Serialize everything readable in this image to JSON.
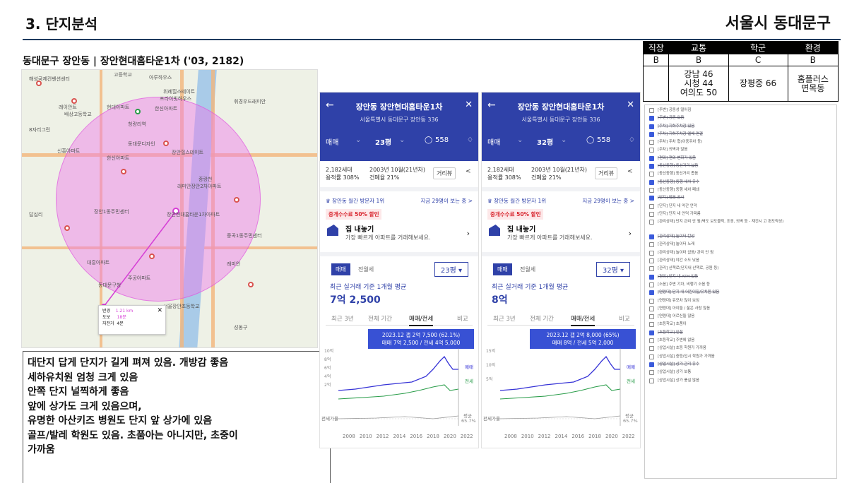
{
  "header": {
    "section_title": "3. 단지분석",
    "region": "서울시 동대문구"
  },
  "subtitle": "동대문구 장안동 | 장안현대홈타운1차 ('03, 2182)",
  "map": {
    "labels": [
      "해성국제컨벤션센터",
      "고등학교",
      "아루하우스",
      "위례힐스테이트",
      "프라이빗하우스",
      "레이안트",
      "배상고등학교",
      "현대아파트",
      "한신아파트",
      "휘경우드래미안",
      "청량리역",
      "8자리그린",
      "신흥아파트",
      "한신아파트",
      "동대문디자인",
      "장안힐스테이트",
      "래미안장안2차아파트",
      "중랑천",
      "장안1동주민센터",
      "장안현대홈타운1차아파트",
      "대흥아파트",
      "동대문구청",
      "주공아파트",
      "중곡1동주민센터",
      "서울장안초등학교",
      "답십리",
      "래미안",
      "성동구"
    ],
    "popup": {
      "rows": [
        [
          "반경",
          "1.21 km"
        ],
        [
          "도보",
          "18분"
        ],
        [
          "자전거",
          "4분"
        ]
      ]
    }
  },
  "note_lines": [
    "대단지 답게 단지가 길게 펴져 있음. 개방감 좋음",
    "세하유치원 엄청 크게 있음",
    "안쪽 단지 널찍하게 좋음",
    "앞에 상가도 크게 있음으며,",
    "유명한 아산키즈 병원도 단지 앞 상가에 있음",
    "골프/발레 학원도 있음. 초품아는 아니지만, 초중이",
    "가까움"
  ],
  "apps": [
    {
      "title": "장안동 장안현대홈타운1차",
      "address": "서울특별시 동대문구 장안동 336",
      "trade_type": "매매",
      "size": "23평",
      "comments": "558",
      "households": "2,182세대",
      "far": "용적률 308%",
      "built": "2003년 10월(21년차)",
      "bcr": "건폐율 21%",
      "street_btn": "거리뷰",
      "rank": "장안동 월간 방문자 1위",
      "viewers": "지금 29명이 보는 중 >",
      "promo": "중개수수료 50% 할인",
      "deal_title": "집 내놓기",
      "deal_desc": "가장 빠르게 아파트를 거래해보세요.",
      "tab_on": "매매",
      "tab_off": "전월세",
      "avg_label": "최근 실거래 기준 1개월 평균",
      "avg_value": "7억 2,500",
      "period_tabs": [
        "최근 3년",
        "전체 기간",
        "매매/전세",
        "비교"
      ],
      "tooltip": [
        "2023.12  갭 2억 7,500 (62.1%)",
        "매매 7억 2,500 / 전세 4억 5,000"
      ],
      "y_ticks": [
        "10억",
        "8억",
        "6억",
        "4억",
        "2억"
      ],
      "ratio_label": "전세가율",
      "legend": [
        "매매",
        "전세",
        "평균",
        "65.7%"
      ],
      "x_ticks": [
        "2008",
        "2010",
        "2012",
        "2014",
        "2016",
        "2018",
        "2020",
        "2022"
      ]
    },
    {
      "title": "장안동 장안현대홈타운1차",
      "address": "서울특별시 동대문구 장안동 336",
      "trade_type": "매매",
      "size": "32평",
      "comments": "558",
      "households": "2,182세대",
      "far": "용적률 308%",
      "built": "2003년 10월(21년차)",
      "bcr": "건폐율 21%",
      "street_btn": "거리뷰",
      "rank": "장안동 월간 방문자 1위",
      "viewers": "지금 29명이 보는 중 >",
      "promo": "중개수수료 50% 할인",
      "deal_title": "집 내놓기",
      "deal_desc": "가장 빠르게 아파트를 거래해보세요.",
      "tab_on": "매매",
      "tab_off": "전월세",
      "avg_label": "최근 실거래 기준 1개월 평균",
      "avg_value": "8억",
      "period_tabs": [
        "최근 3년",
        "전체 기간",
        "매매/전세",
        "비교"
      ],
      "tooltip": [
        "2023.12  갭 2억 8,000 (65%)",
        "매매 8억 / 전세 5억 2,000"
      ],
      "y_ticks": [
        "15억",
        "10억",
        "5억"
      ],
      "ratio_label": "전세가율",
      "legend": [
        "매매",
        "전세",
        "평균",
        "65.7%"
      ],
      "x_ticks": [
        "2008",
        "2010",
        "2012",
        "2014",
        "2016",
        "2018",
        "2020",
        "2022"
      ]
    }
  ],
  "rating_table": {
    "headers": [
      "직장",
      "교통",
      "학군",
      "환경"
    ],
    "grades": [
      "B",
      "B",
      "C",
      "B"
    ],
    "details": [
      "",
      "강남 46\n시청 44\n여의도 50",
      "장평중 66",
      "홈플러스\n면목동"
    ]
  },
  "checklist": [
    {
      "text": "[주변] 공동성 떨어짐",
      "checked": false
    },
    {
      "text": "[주변] 공원 있음",
      "checked": true
    },
    {
      "text": "[주차] 지하주차장 있음",
      "checked": true
    },
    {
      "text": "[주차] 지하주차장 엘베 연결",
      "checked": true
    },
    {
      "text": "[주차] 주차 협(이중주차 등)",
      "checked": false
    },
    {
      "text": "[주차] 외벽차 많음",
      "checked": false
    },
    {
      "text": "[편의] 편의 변화가 있음",
      "checked": true
    },
    {
      "text": "[동선동행] 동선거리 넓음",
      "checked": true
    },
    {
      "text": "[동선동행] 동선거리 좁음",
      "checked": false
    },
    {
      "text": "[동선동행] 동행 세차 유수",
      "checked": true
    },
    {
      "text": "[동선동행] 동행 세차 폐쇄",
      "checked": false
    },
    {
      "text": "[단지] 방음 공사",
      "checked": true
    },
    {
      "text": "[단지] 단지 내 악간 언덕",
      "checked": false
    },
    {
      "text": "[단지] 단지 내 언덕 가파름",
      "checked": false
    },
    {
      "text": "[관리상태] 단지 관리 안 됨(벽도 보도블럭, 조경, 외벽 등 - 재건시 고 편도락성)",
      "checked": false
    },
    {
      "text": "[관리상태] 놀이터 탄성",
      "checked": true
    },
    {
      "text": "[관리상태] 놀이터 노래",
      "checked": false
    },
    {
      "text": "[관리상태] 놀이터 없음/ 관리 안 됨",
      "checked": false
    },
    {
      "text": "[관리상태] 야간 소도 낮음",
      "checked": false
    },
    {
      "text": "[관리] 산책로(단지내 산책로, 공원 등)",
      "checked": false
    },
    {
      "text": "[편의] 단지 내 ATM 있음",
      "checked": true
    },
    {
      "text": "[소음] 주변 기차, 비행기 소음 등",
      "checked": false
    },
    {
      "text": "[연령대] 단지 내 어린이집/유치원 있음",
      "checked": true
    },
    {
      "text": "[연령대] 유모차 많이 보임",
      "checked": false
    },
    {
      "text": "[연령대] 아이들 / 젊은 사람 많음",
      "checked": false
    },
    {
      "text": "[연령대] 어르신들 많음",
      "checked": false
    },
    {
      "text": "[초등학교] 초품아",
      "checked": false
    },
    {
      "text": "[초등학교] 인접",
      "checked": true
    },
    {
      "text": "[초등학교] 주변에 없음",
      "checked": false
    },
    {
      "text": "[상업시설] 초등 학원가 가까움",
      "checked": false
    },
    {
      "text": "[상업시설] 중등/입시 학원가 가까움",
      "checked": false
    },
    {
      "text": "[상업시설] 상가 관리 유수",
      "checked": true
    },
    {
      "text": "[상업시설] 상가 보통",
      "checked": false
    },
    {
      "text": "[상업시설] 상가 풍실 많음",
      "checked": false
    }
  ]
}
